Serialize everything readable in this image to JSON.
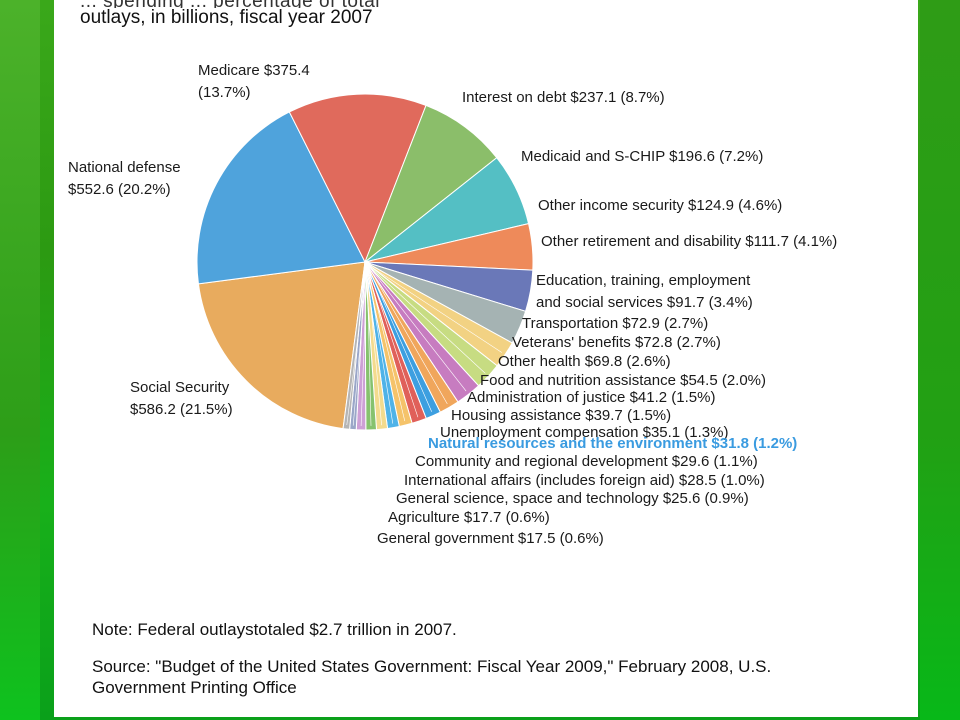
{
  "chart_data": {
    "type": "pie",
    "title": "outlays, in billions, fiscal year 2007",
    "title_partial_above": "... spending ... percentage of total",
    "unit": "$ billions",
    "slices": [
      {
        "label": "Social Security",
        "display": "Social Security\n$586.2 (21.5%)",
        "value": 586.2,
        "percent": 21.5,
        "color": "#E8AB5E"
      },
      {
        "label": "National defense",
        "display": "National defense\n$552.6 (20.2%)",
        "value": 552.6,
        "percent": 20.2,
        "color": "#4FA3DC"
      },
      {
        "label": "Medicare",
        "display": "Medicare $375.4\n(13.7%)",
        "value": 375.4,
        "percent": 13.7,
        "color": "#E06A5C"
      },
      {
        "label": "Interest on debt",
        "display": "Interest on debt $237.1 (8.7%)",
        "value": 237.1,
        "percent": 8.7,
        "color": "#8BBE6A"
      },
      {
        "label": "Medicaid and S-CHIP",
        "display": "Medicaid and S-CHIP $196.6 (7.2%)",
        "value": 196.6,
        "percent": 7.2,
        "color": "#54BFC4"
      },
      {
        "label": "Other income security",
        "display": "Other income security $124.9 (4.6%)",
        "value": 124.9,
        "percent": 4.6,
        "color": "#EE8A5A"
      },
      {
        "label": "Other retirement and disability",
        "display": "Other retirement and disability $111.7 (4.1%)",
        "value": 111.7,
        "percent": 4.1,
        "color": "#6A78B8"
      },
      {
        "label": "Education, training, employment and social services",
        "display": "Education, training, employment\nand social services $91.7 (3.4%)",
        "value": 91.7,
        "percent": 3.4,
        "color": "#A5B3B3"
      },
      {
        "label": "Transportation",
        "display": "Transportation $72.9 (2.7%)",
        "value": 72.9,
        "percent": 2.7,
        "color": "#F2D283"
      },
      {
        "label": "Veterans' benefits",
        "display": "Veterans' benefits $72.8 (2.7%)",
        "value": 72.8,
        "percent": 2.7,
        "color": "#C7DC82"
      },
      {
        "label": "Other health",
        "display": "Other health $69.8 (2.6%)",
        "value": 69.8,
        "percent": 2.6,
        "color": "#C77CC0"
      },
      {
        "label": "Food and nutrition assistance",
        "display": "Food and nutrition assistance $54.5 (2.0%)",
        "value": 54.5,
        "percent": 2.0,
        "color": "#F0A65C"
      },
      {
        "label": "Administration of justice",
        "display": "Administration of justice $41.2 (1.5%)",
        "value": 41.2,
        "percent": 1.5,
        "color": "#3D9FE0"
      },
      {
        "label": "Housing assistance",
        "display": "Housing assistance $39.7 (1.5%)",
        "value": 39.7,
        "percent": 1.5,
        "color": "#E0605A"
      },
      {
        "label": "Unemployment compensation",
        "display": "Unemployment compensation $35.1 (1.3%)",
        "value": 35.1,
        "percent": 1.3,
        "color": "#F5C36A"
      },
      {
        "label": "Natural resources and the environment",
        "display": "Natural resources and the environment $31.8 (1.2%)",
        "value": 31.8,
        "percent": 1.2,
        "color": "#4FB3E8",
        "highlight": true
      },
      {
        "label": "Community and regional development",
        "display": "Community and regional development $29.6 (1.1%)",
        "value": 29.6,
        "percent": 1.1,
        "color": "#F3DB8E"
      },
      {
        "label": "International affairs (includes foreign aid)",
        "display": "International affairs (includes foreign aid) $28.5 (1.0%)",
        "value": 28.5,
        "percent": 1.0,
        "color": "#86C26E"
      },
      {
        "label": "General science, space and technology",
        "display": "General science, space and technology $25.6 (0.9%)",
        "value": 25.6,
        "percent": 0.9,
        "color": "#CDA0D6"
      },
      {
        "label": "Agriculture",
        "display": "Agriculture $17.7 (0.6%)",
        "value": 17.7,
        "percent": 0.6,
        "color": "#9AA6C8"
      },
      {
        "label": "General government",
        "display": "General government $17.5 (0.6%)",
        "value": 17.5,
        "percent": 0.6,
        "color": "#B5B5B5"
      }
    ]
  },
  "note": "Note: Federal outlaystotaled $2.7 trillion in 2007.",
  "source": "Source: \"Budget of the United States Government: Fiscal Year 2009,\" February 2008, U.S. Government Printing Office"
}
